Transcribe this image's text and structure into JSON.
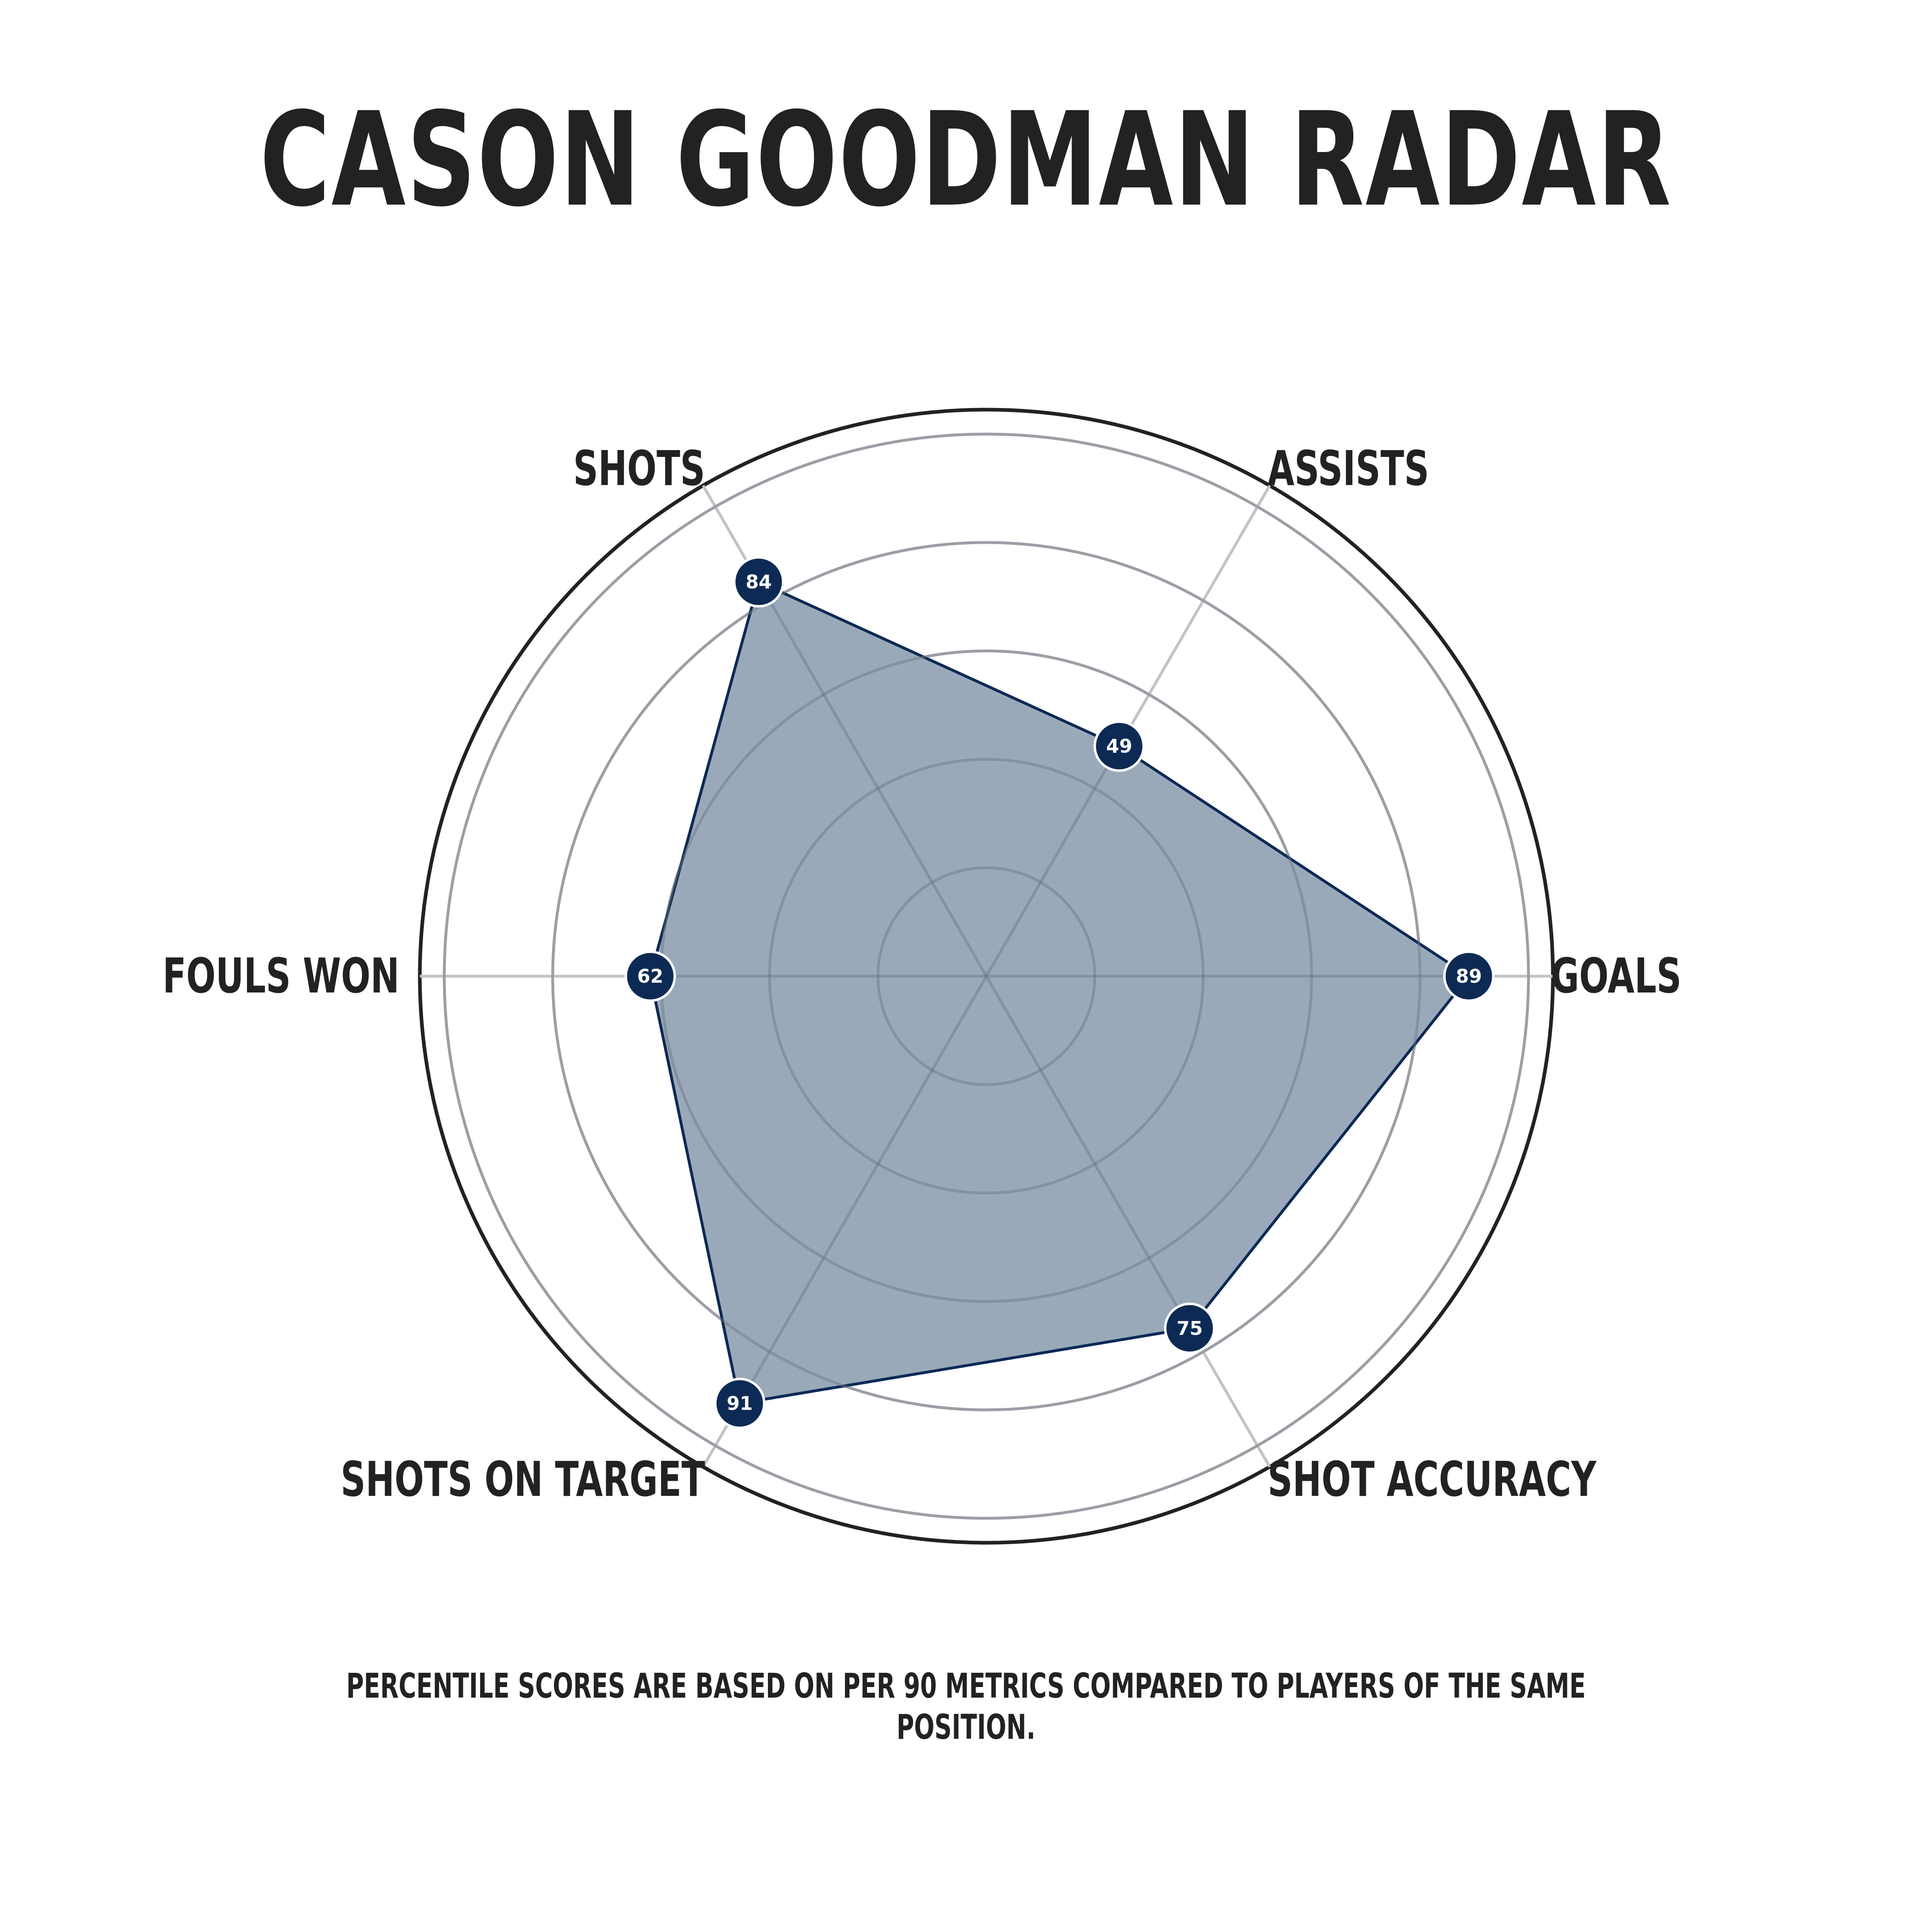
{
  "title": "CASON GOODMAN RADAR",
  "footnote": "PERCENTILE SCORES ARE BASED ON PER 90 METRICS COMPARED TO PLAYERS OF THE SAME POSITION.",
  "colors": {
    "fill": "#9aa9ba",
    "line": "#0d2a55",
    "point": "#0d2a55",
    "grid": "#c3c3c3",
    "outer_ring": "#222222",
    "text": "#222222"
  },
  "chart_data": {
    "type": "radar",
    "title": "CASON GOODMAN RADAR",
    "categories": [
      "GOALS",
      "ASSISTS",
      "SHOTS",
      "FOULS WON",
      "SHOTS ON TARGET",
      "SHOT ACCURACY"
    ],
    "values": [
      89,
      49,
      84,
      62,
      91,
      75
    ],
    "range": [
      0,
      100
    ],
    "grid_rings": [
      20,
      40,
      60,
      80,
      100
    ],
    "grid": true,
    "legend": false
  }
}
